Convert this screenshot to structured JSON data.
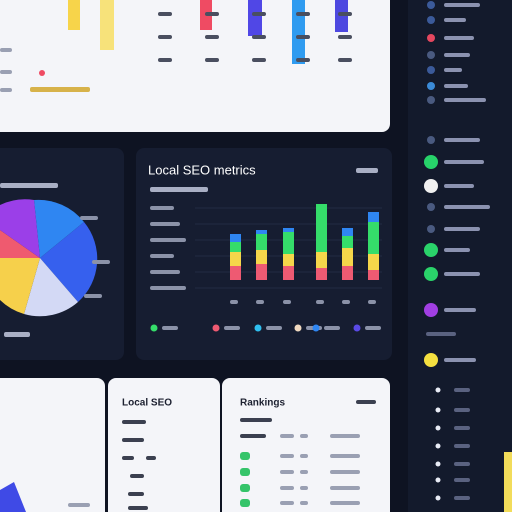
{
  "cards": [
    {
      "title": "Local SEO metrics"
    },
    {
      "title": "Local SEO"
    },
    {
      "title": "Rankings"
    }
  ]
}
